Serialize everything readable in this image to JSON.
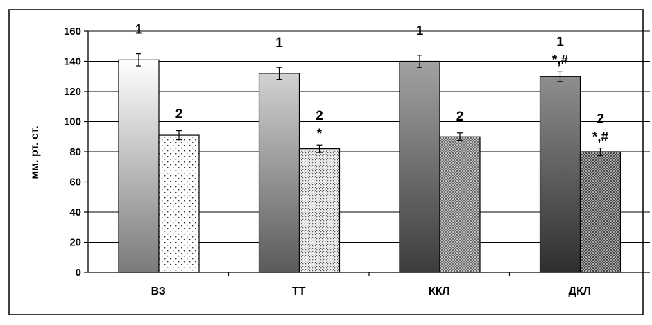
{
  "chart_data": {
    "type": "bar",
    "title": "",
    "xlabel": "",
    "ylabel": "мм. рт. ст.",
    "ylim": [
      0,
      160
    ],
    "yticks": [
      0,
      20,
      40,
      60,
      80,
      100,
      120,
      140,
      160
    ],
    "grid": true,
    "legend": "none",
    "categories": [
      "ВЗ",
      "ТТ",
      "ККЛ",
      "ДКЛ"
    ],
    "series": [
      {
        "values": [
          141,
          132,
          140,
          130
        ],
        "errors": [
          4,
          4,
          4,
          3.5
        ],
        "labels": [
          "1",
          "1",
          "1",
          "1"
        ],
        "marks": [
          "",
          "",
          "",
          "*,#"
        ]
      },
      {
        "values": [
          91,
          82,
          90,
          80
        ],
        "errors": [
          3,
          2.5,
          2.5,
          2.5
        ],
        "labels": [
          "2",
          "2",
          "2",
          "2"
        ],
        "marks": [
          "",
          "*",
          "",
          "*,#"
        ]
      }
    ]
  }
}
